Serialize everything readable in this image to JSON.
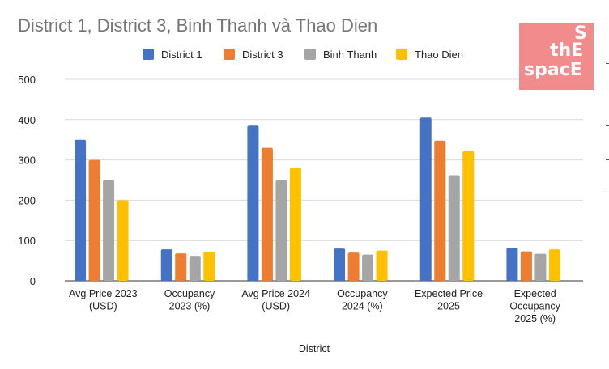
{
  "chart_data": {
    "type": "bar",
    "title": "District 1, District 3, Binh Thanh và Thao Dien",
    "xlabel": "District",
    "ylabel": "",
    "ylim": [
      0,
      500
    ],
    "yticks": [
      0,
      100,
      200,
      300,
      400,
      500
    ],
    "grid": true,
    "legend_position": "top",
    "categories": [
      [
        "Avg Price 2023",
        "(USD)"
      ],
      [
        "Occupancy",
        "2023 (%)"
      ],
      [
        "Avg Price 2024",
        "(USD)"
      ],
      [
        "Occupancy",
        "2024 (%)"
      ],
      [
        "Expected Price",
        "2025"
      ],
      [
        "Expected",
        "Occupancy",
        "2025 (%)"
      ]
    ],
    "series": [
      {
        "name": "District 1",
        "color": "#4472c4",
        "values": [
          350,
          78,
          385,
          80,
          405,
          82
        ]
      },
      {
        "name": "District 3",
        "color": "#ed7d31",
        "values": [
          300,
          68,
          330,
          70,
          348,
          73
        ]
      },
      {
        "name": "Binh Thanh",
        "color": "#a5a5a5",
        "values": [
          250,
          62,
          250,
          65,
          262,
          67
        ]
      },
      {
        "name": "Thao Dien",
        "color": "#ffc000",
        "values": [
          200,
          72,
          280,
          75,
          322,
          78
        ]
      }
    ]
  },
  "logo": {
    "line1": "S",
    "line2": "thE",
    "line3": "spacE",
    "color": "#f28c8c"
  }
}
